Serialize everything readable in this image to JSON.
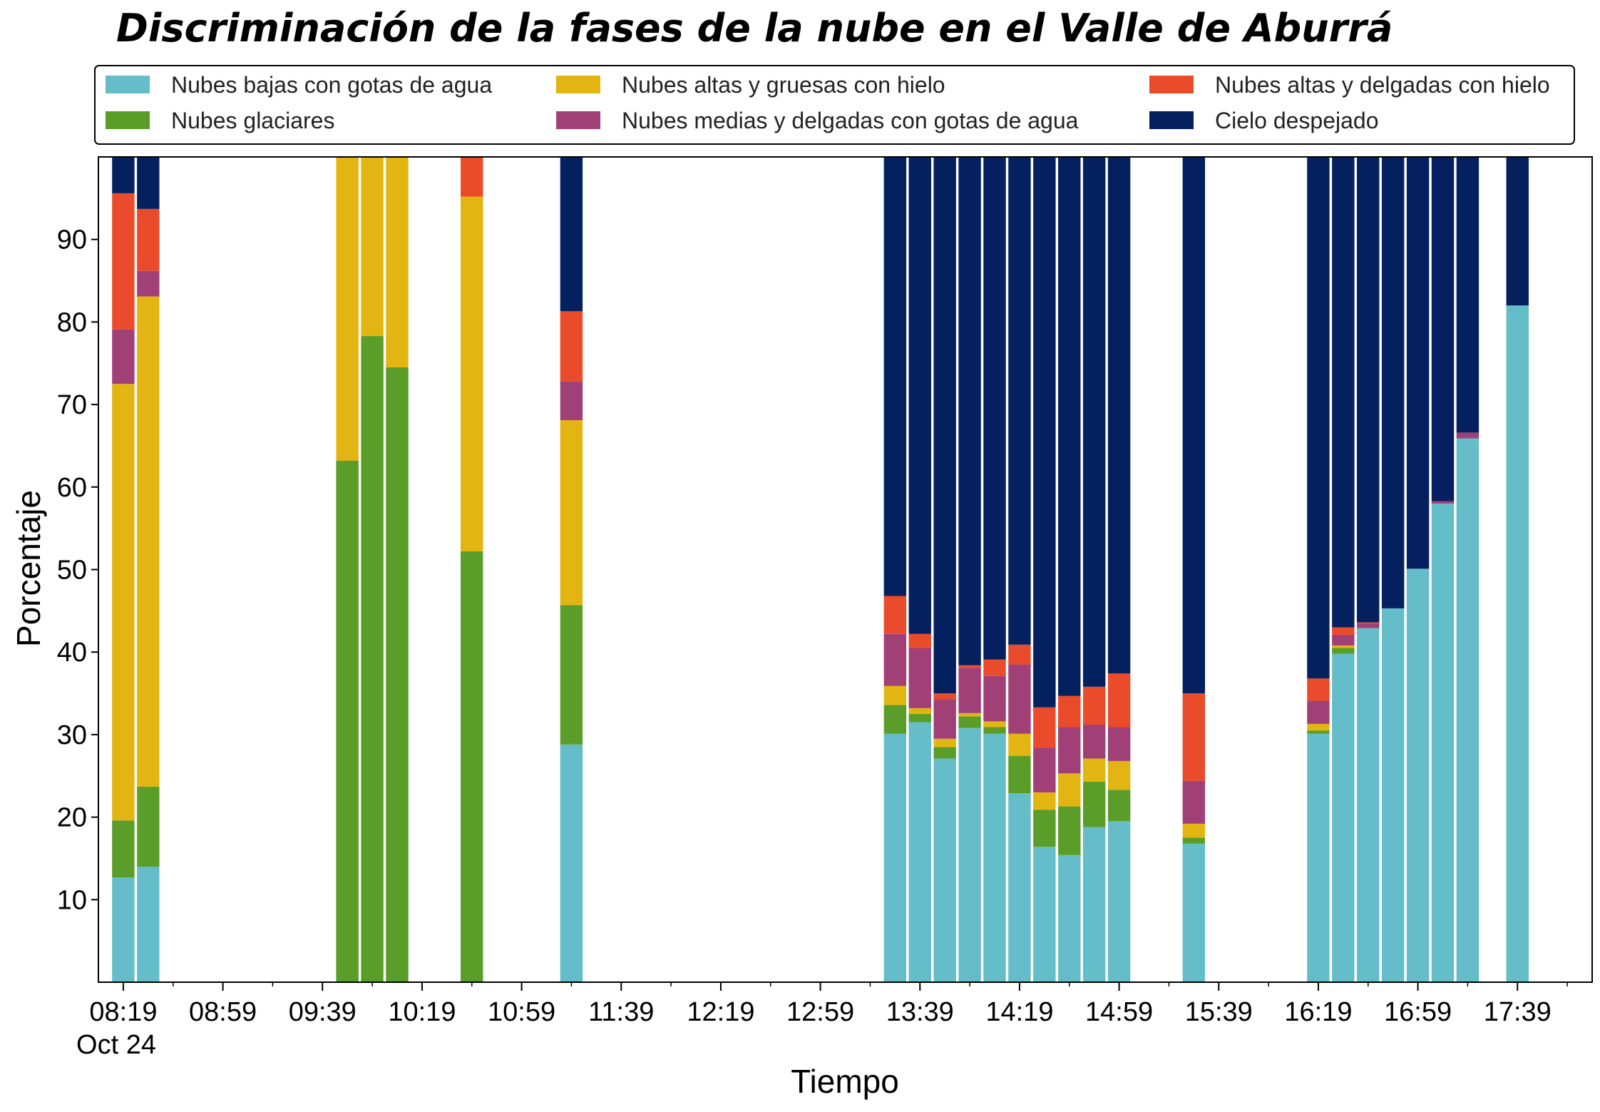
{
  "chart_data": {
    "type": "bar",
    "stacked": true,
    "title": "Discriminación de la fases de la nube en el Valle de Aburrá",
    "xlabel": "Tiempo",
    "ylabel": "Porcentaje",
    "ylim": [
      0,
      100
    ],
    "yticks": [
      10,
      20,
      30,
      40,
      50,
      60,
      70,
      80,
      90
    ],
    "x_ticks": [
      "08:19",
      "08:59",
      "09:39",
      "10:19",
      "10:59",
      "11:39",
      "12:19",
      "12:59",
      "13:39",
      "14:19",
      "14:59",
      "15:39",
      "16:19",
      "16:59",
      "17:39"
    ],
    "x_date_label": "Oct 24",
    "x_range": [
      "08:09",
      "18:09"
    ],
    "bar_width_minutes": 9,
    "legend_position": "top",
    "series_order": [
      "low",
      "glacial",
      "thick",
      "mid",
      "thin",
      "clear"
    ],
    "series": [
      {
        "key": "low",
        "name": "Nubes bajas con gotas de agua",
        "color": "#64bdc9"
      },
      {
        "key": "glacial",
        "name": "Nubes glaciares",
        "color": "#5a9e29"
      },
      {
        "key": "thick",
        "name": "Nubes altas y gruesas con hielo",
        "color": "#e3b512"
      },
      {
        "key": "mid",
        "name": "Nubes medias y delgadas con gotas de agua",
        "color": "#a13f77"
      },
      {
        "key": "thin",
        "name": "Nubes altas y delgadas con hielo",
        "color": "#ea4b2a"
      },
      {
        "key": "clear",
        "name": "Cielo despejado",
        "color": "#04205e"
      }
    ],
    "legend_layout": [
      [
        "low",
        "thick",
        "thin"
      ],
      [
        "glacial",
        "mid",
        "clear"
      ]
    ],
    "bars": [
      {
        "time": "08:19",
        "low": 12.7,
        "glacial": 6.9,
        "thick": 52.9,
        "mid": 6.6,
        "thin": 16.5,
        "clear": 4.4
      },
      {
        "time": "08:29",
        "low": 14.0,
        "glacial": 9.7,
        "thick": 59.4,
        "mid": 3.1,
        "thin": 7.5,
        "clear": 6.3
      },
      {
        "time": "09:49",
        "low": 0,
        "glacial": 63.2,
        "thick": 36.8,
        "mid": 0,
        "thin": 0,
        "clear": 0
      },
      {
        "time": "09:59",
        "low": 0,
        "glacial": 78.3,
        "thick": 21.7,
        "mid": 0,
        "thin": 0,
        "clear": 0
      },
      {
        "time": "10:09",
        "low": 0,
        "glacial": 74.5,
        "thick": 25.5,
        "mid": 0,
        "thin": 0,
        "clear": 0
      },
      {
        "time": "10:39",
        "low": 0,
        "glacial": 52.2,
        "thick": 43.0,
        "mid": 0,
        "thin": 4.8,
        "clear": 0
      },
      {
        "time": "11:19",
        "low": 28.8,
        "glacial": 16.9,
        "thick": 22.4,
        "mid": 4.7,
        "thin": 8.5,
        "clear": 18.7
      },
      {
        "time": "13:29",
        "low": 30.1,
        "glacial": 3.5,
        "thick": 2.3,
        "mid": 6.3,
        "thin": 4.6,
        "clear": 53.2
      },
      {
        "time": "13:39",
        "low": 31.5,
        "glacial": 1.0,
        "thick": 0.7,
        "mid": 7.3,
        "thin": 1.7,
        "clear": 57.8
      },
      {
        "time": "13:49",
        "low": 27.1,
        "glacial": 1.4,
        "thick": 1.0,
        "mid": 4.8,
        "thin": 0.7,
        "clear": 65.0
      },
      {
        "time": "13:59",
        "low": 30.8,
        "glacial": 1.4,
        "thick": 0.4,
        "mid": 5.5,
        "thin": 0.3,
        "clear": 61.6
      },
      {
        "time": "14:09",
        "low": 30.1,
        "glacial": 0.8,
        "thick": 0.7,
        "mid": 5.5,
        "thin": 2.0,
        "clear": 60.9
      },
      {
        "time": "14:19",
        "low": 22.9,
        "glacial": 4.5,
        "thick": 2.7,
        "mid": 8.4,
        "thin": 2.4,
        "clear": 59.1
      },
      {
        "time": "14:29",
        "low": 16.4,
        "glacial": 4.5,
        "thick": 2.1,
        "mid": 5.4,
        "thin": 4.9,
        "clear": 66.7
      },
      {
        "time": "14:39",
        "low": 15.4,
        "glacial": 5.9,
        "thick": 4.0,
        "mid": 5.6,
        "thin": 3.8,
        "clear": 65.3
      },
      {
        "time": "14:49",
        "low": 18.8,
        "glacial": 5.5,
        "thick": 2.8,
        "mid": 4.1,
        "thin": 4.6,
        "clear": 64.2
      },
      {
        "time": "14:59",
        "low": 19.5,
        "glacial": 3.8,
        "thick": 3.5,
        "mid": 4.1,
        "thin": 6.5,
        "clear": 62.6
      },
      {
        "time": "15:29",
        "low": 16.8,
        "glacial": 0.7,
        "thick": 1.7,
        "mid": 5.2,
        "thin": 10.6,
        "clear": 65.0
      },
      {
        "time": "16:19",
        "low": 30.1,
        "glacial": 0.4,
        "thick": 0.8,
        "mid": 2.8,
        "thin": 2.7,
        "clear": 63.2
      },
      {
        "time": "16:29",
        "low": 39.8,
        "glacial": 0.7,
        "thick": 0.3,
        "mid": 1.3,
        "thin": 0.9,
        "clear": 57.0
      },
      {
        "time": "16:39",
        "low": 42.9,
        "glacial": 0,
        "thick": 0,
        "mid": 0.6,
        "thin": 0.1,
        "clear": 56.4
      },
      {
        "time": "16:49",
        "low": 45.3,
        "glacial": 0,
        "thick": 0,
        "mid": 0,
        "thin": 0,
        "clear": 54.7
      },
      {
        "time": "16:59",
        "low": 50.1,
        "glacial": 0,
        "thick": 0,
        "mid": 0,
        "thin": 0,
        "clear": 49.9
      },
      {
        "time": "17:09",
        "low": 58.0,
        "glacial": 0,
        "thick": 0,
        "mid": 0.3,
        "thin": 0,
        "clear": 41.7
      },
      {
        "time": "17:19",
        "low": 65.9,
        "glacial": 0,
        "thick": 0,
        "mid": 0.7,
        "thin": 0,
        "clear": 33.4
      },
      {
        "time": "17:39",
        "low": 82.0,
        "glacial": 0,
        "thick": 0,
        "mid": 0,
        "thin": 0,
        "clear": 18.0
      }
    ]
  }
}
